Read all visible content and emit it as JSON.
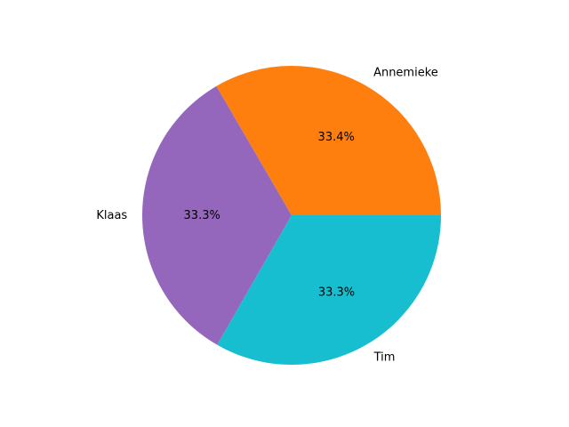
{
  "chart_data": {
    "type": "pie",
    "labels": [
      "Annemieke",
      "Klaas",
      "Tim"
    ],
    "values": [
      33.4,
      33.3,
      33.3
    ],
    "percent_labels": [
      "33.4%",
      "33.3%",
      "33.3%"
    ],
    "colors": [
      "#ff7f0e",
      "#9467bd",
      "#17becf"
    ],
    "start_angle_deg": 0,
    "direction": "counterclockwise",
    "title": "",
    "legend": "none"
  }
}
